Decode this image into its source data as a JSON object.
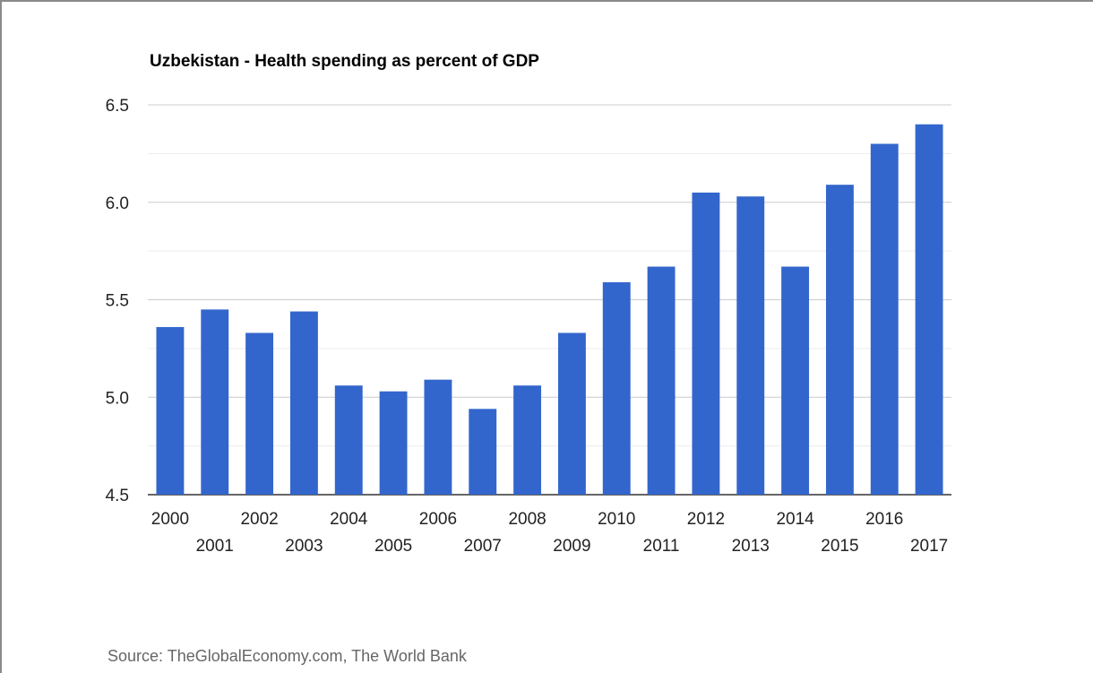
{
  "chart_data": {
    "type": "bar",
    "title": "Uzbekistan - Health spending as percent of GDP",
    "xlabel": "",
    "ylabel": "",
    "categories": [
      "2000",
      "2001",
      "2002",
      "2003",
      "2004",
      "2005",
      "2006",
      "2007",
      "2008",
      "2009",
      "2010",
      "2011",
      "2012",
      "2013",
      "2014",
      "2015",
      "2016",
      "2017"
    ],
    "values": [
      5.36,
      5.45,
      5.33,
      5.44,
      5.06,
      5.03,
      5.09,
      4.94,
      5.06,
      5.33,
      5.59,
      5.67,
      6.05,
      6.03,
      5.67,
      6.09,
      6.3,
      6.4
    ],
    "ylim": [
      4.5,
      6.5
    ],
    "yticks": [
      "4.5",
      "5.0",
      "5.5",
      "6.0",
      "6.5"
    ],
    "grid": true,
    "bar_color": "#3366cc"
  },
  "source": "Source: TheGlobalEconomy.com, The World Bank"
}
